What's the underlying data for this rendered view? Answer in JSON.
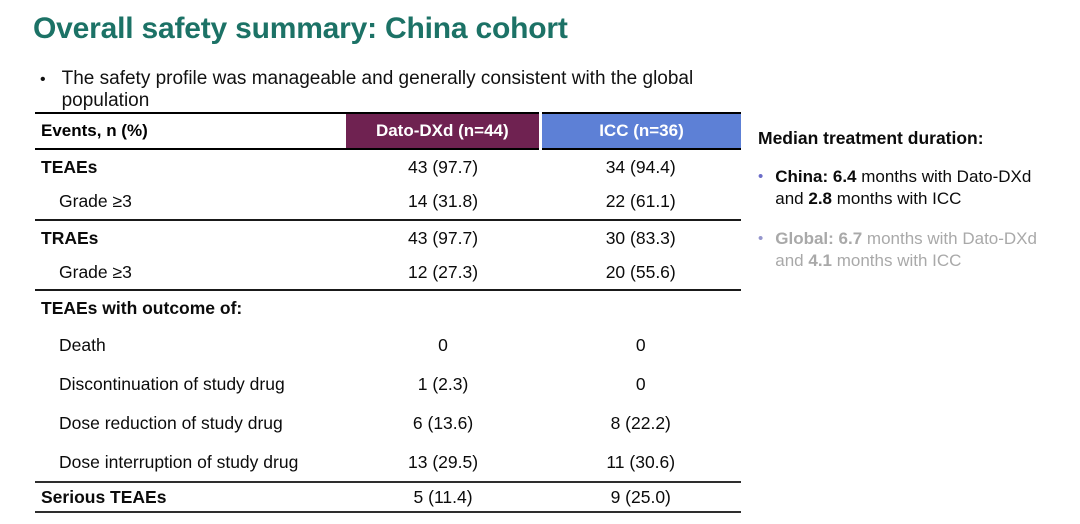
{
  "slide": {
    "title": "Overall safety summary: China cohort",
    "bullet_marker": "•",
    "summary_bullet": "The safety profile was manageable and generally consistent with the global population"
  },
  "table": {
    "columns": [
      "Events, n (%)",
      "Dato-DXd (n=44)",
      "ICC (n=36)"
    ],
    "rows": [
      {
        "label": "TEAEs",
        "dato": "43 (97.7)",
        "icc": "34 (94.4)"
      },
      {
        "label": "Grade ≥3",
        "dato": "14 (31.8)",
        "icc": "22 (61.1)"
      },
      {
        "label": "TRAEs",
        "dato": "43 (97.7)",
        "icc": "30 (83.3)"
      },
      {
        "label": "Grade ≥3",
        "dato": "12 (27.3)",
        "icc": "20 (55.6)"
      },
      {
        "label": "TEAEs with outcome of:",
        "dato": "",
        "icc": ""
      },
      {
        "label": "Death",
        "dato": "0",
        "icc": "0"
      },
      {
        "label": "Discontinuation of study drug",
        "dato": "1 (2.3)",
        "icc": "0"
      },
      {
        "label": "Dose reduction of study drug",
        "dato": "6 (13.6)",
        "icc": "8 (22.2)"
      },
      {
        "label": "Dose interruption of study drug",
        "dato": "13 (29.5)",
        "icc": "11 (30.6)"
      },
      {
        "label": "Serious TEAEs",
        "dato": "5 (11.4)",
        "icc": "9 (25.0)"
      }
    ]
  },
  "sidebar": {
    "heading": "Median treatment duration:",
    "bullet_marker": "•",
    "china": {
      "bold1": "China: 6.4",
      "text1": " months with Dato-DXd",
      "text2": "and ",
      "bold2": "2.8",
      "text3": " months with ICC"
    },
    "global": {
      "bold1": "Global: 6.7",
      "text1": " months with Dato-DXd",
      "text2": "and ",
      "bold2": "4.1",
      "text3": " months with ICC"
    }
  },
  "colors": {
    "title_teal": "#1c7266",
    "dato_header_bg": "#6f2251",
    "icc_header_bg": "#5d80d6",
    "muted_gray": "#a9a9a9",
    "china_bullet": "#6b6cc8",
    "global_bullet": "#9596cd"
  }
}
